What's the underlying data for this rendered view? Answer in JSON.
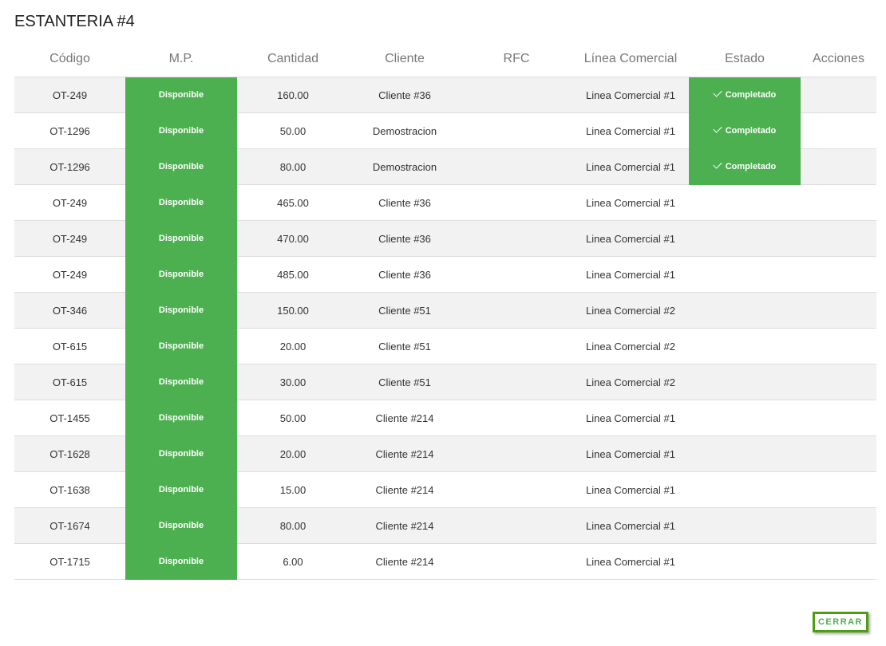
{
  "title": "ESTANTERIA #4",
  "columns": [
    "Código",
    "M.P.",
    "Cantidad",
    "Cliente",
    "RFC",
    "Línea Comercial",
    "Estado",
    "Acciones"
  ],
  "rows": [
    {
      "codigo": "OT-249",
      "mp": "Disponible",
      "cantidad": "160.00",
      "cliente": "Cliente #36",
      "rfc": "",
      "linea": "Linea Comercial #1",
      "estado": "Completado"
    },
    {
      "codigo": "OT-1296",
      "mp": "Disponible",
      "cantidad": "50.00",
      "cliente": "Demostracion",
      "rfc": "",
      "linea": "Linea Comercial #1",
      "estado": "Completado"
    },
    {
      "codigo": "OT-1296",
      "mp": "Disponible",
      "cantidad": "80.00",
      "cliente": "Demostracion",
      "rfc": "",
      "linea": "Linea Comercial #1",
      "estado": "Completado"
    },
    {
      "codigo": "OT-249",
      "mp": "Disponible",
      "cantidad": "465.00",
      "cliente": "Cliente #36",
      "rfc": "",
      "linea": "Linea Comercial #1",
      "estado": ""
    },
    {
      "codigo": "OT-249",
      "mp": "Disponible",
      "cantidad": "470.00",
      "cliente": "Cliente #36",
      "rfc": "",
      "linea": "Linea Comercial #1",
      "estado": ""
    },
    {
      "codigo": "OT-249",
      "mp": "Disponible",
      "cantidad": "485.00",
      "cliente": "Cliente #36",
      "rfc": "",
      "linea": "Linea Comercial #1",
      "estado": ""
    },
    {
      "codigo": "OT-346",
      "mp": "Disponible",
      "cantidad": "150.00",
      "cliente": "Cliente #51",
      "rfc": "",
      "linea": "Linea Comercial #2",
      "estado": ""
    },
    {
      "codigo": "OT-615",
      "mp": "Disponible",
      "cantidad": "20.00",
      "cliente": "Cliente #51",
      "rfc": "",
      "linea": "Linea Comercial #2",
      "estado": ""
    },
    {
      "codigo": "OT-615",
      "mp": "Disponible",
      "cantidad": "30.00",
      "cliente": "Cliente #51",
      "rfc": "",
      "linea": "Linea Comercial #2",
      "estado": ""
    },
    {
      "codigo": "OT-1455",
      "mp": "Disponible",
      "cantidad": "50.00",
      "cliente": "Cliente #214",
      "rfc": "",
      "linea": "Linea Comercial #1",
      "estado": ""
    },
    {
      "codigo": "OT-1628",
      "mp": "Disponible",
      "cantidad": "20.00",
      "cliente": "Cliente #214",
      "rfc": "",
      "linea": "Linea Comercial #1",
      "estado": ""
    },
    {
      "codigo": "OT-1638",
      "mp": "Disponible",
      "cantidad": "15.00",
      "cliente": "Cliente #214",
      "rfc": "",
      "linea": "Linea Comercial #1",
      "estado": ""
    },
    {
      "codigo": "OT-1674",
      "mp": "Disponible",
      "cantidad": "80.00",
      "cliente": "Cliente #214",
      "rfc": "",
      "linea": "Linea Comercial #1",
      "estado": ""
    },
    {
      "codigo": "OT-1715",
      "mp": "Disponible",
      "cantidad": "6.00",
      "cliente": "Cliente #214",
      "rfc": "",
      "linea": "Linea Comercial #1",
      "estado": ""
    }
  ],
  "close_label": "CERRAR",
  "colors": {
    "status_green": "#4caf50",
    "row_alt": "#f2f2f2"
  }
}
